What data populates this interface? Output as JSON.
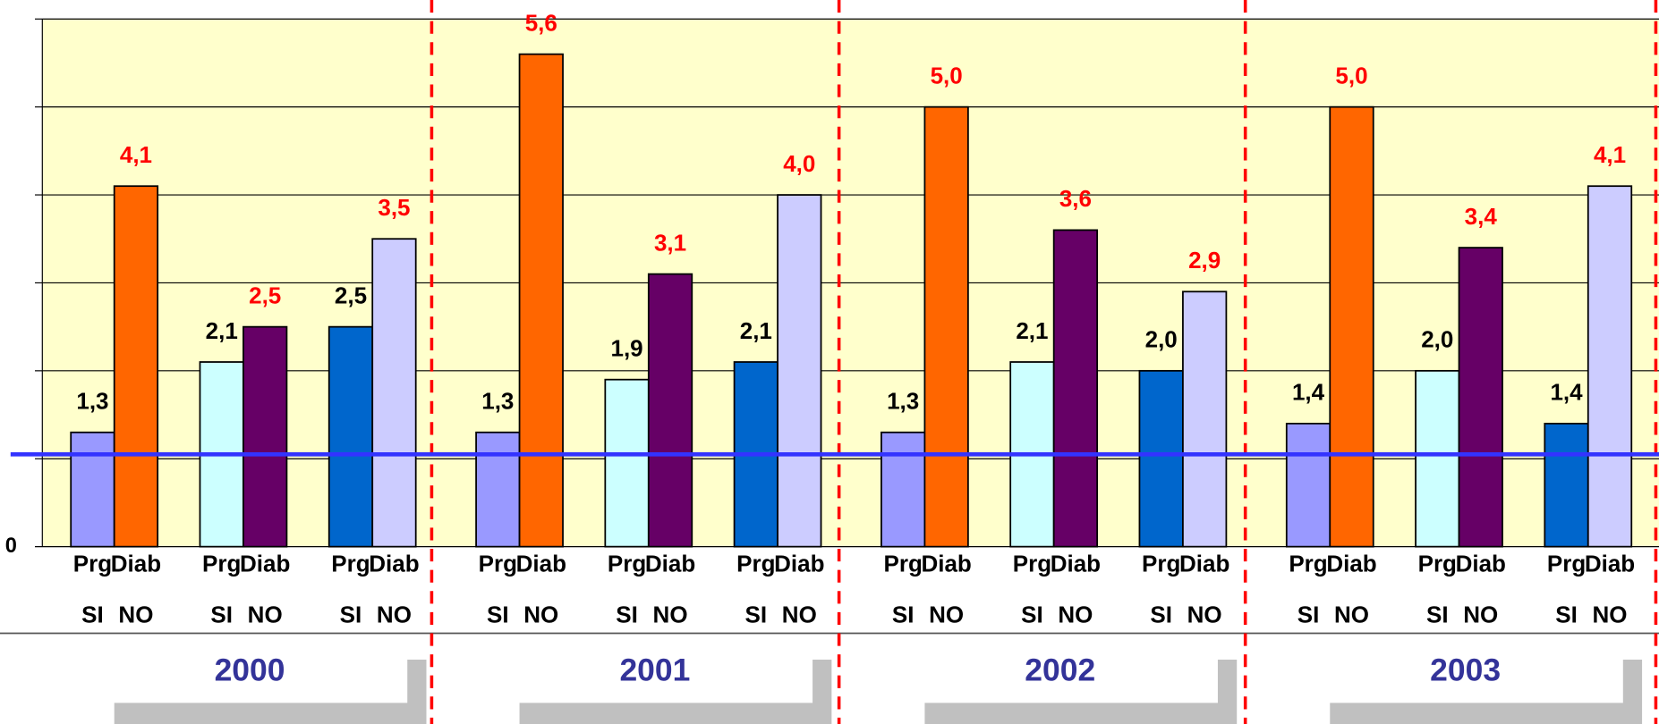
{
  "chart_data": {
    "type": "grouped_bar",
    "ylim": [
      0,
      6
    ],
    "yticks": [
      0
    ],
    "gridlines": [
      1,
      2,
      3,
      4,
      5,
      6
    ],
    "reference_line": 1.05,
    "reference_color": "#3333ff",
    "background": "#ffffcc",
    "bar_colors": [
      "#9999ff",
      "#ff6600",
      "#ccffff",
      "#660066",
      "#0066cc",
      "#ccccff"
    ],
    "value_label_colors": [
      "#000000",
      "#ff0000"
    ],
    "year_color": "#333399",
    "groups": [
      {
        "name": "2000",
        "pairs": [
          {
            "labels": [
              "Prg",
              "Diab"
            ],
            "sublabels": [
              "SI",
              "NO"
            ],
            "values": [
              1.3,
              4.1
            ],
            "value_labels": [
              "1,3",
              "4,1"
            ]
          },
          {
            "labels": [
              "Prg",
              "Diab"
            ],
            "sublabels": [
              "SI",
              "NO"
            ],
            "values": [
              2.1,
              2.5
            ],
            "value_labels": [
              "2,1",
              "2,5"
            ]
          },
          {
            "labels": [
              "Prg",
              "Diab"
            ],
            "sublabels": [
              "SI",
              "NO"
            ],
            "values": [
              2.5,
              3.5
            ],
            "value_labels": [
              "2,5",
              "3,5"
            ]
          }
        ]
      },
      {
        "name": "2001",
        "pairs": [
          {
            "labels": [
              "Prg",
              "Diab"
            ],
            "sublabels": [
              "SI",
              "NO"
            ],
            "values": [
              1.3,
              5.6
            ],
            "value_labels": [
              "1,3",
              "5,6"
            ]
          },
          {
            "labels": [
              "Prg",
              "Diab"
            ],
            "sublabels": [
              "SI",
              "NO"
            ],
            "values": [
              1.9,
              3.1
            ],
            "value_labels": [
              "1,9",
              "3,1"
            ]
          },
          {
            "labels": [
              "Prg",
              "Diab"
            ],
            "sublabels": [
              "SI",
              "NO"
            ],
            "values": [
              2.1,
              4.0
            ],
            "value_labels": [
              "2,1",
              "4,0"
            ]
          }
        ]
      },
      {
        "name": "2002",
        "pairs": [
          {
            "labels": [
              "Prg",
              "Diab"
            ],
            "sublabels": [
              "SI",
              "NO"
            ],
            "values": [
              1.3,
              5.0
            ],
            "value_labels": [
              "1,3",
              "5,0"
            ]
          },
          {
            "labels": [
              "Prg",
              "Diab"
            ],
            "sublabels": [
              "SI",
              "NO"
            ],
            "values": [
              2.1,
              3.6
            ],
            "value_labels": [
              "2,1",
              "3,6"
            ]
          },
          {
            "labels": [
              "Prg",
              "Diab"
            ],
            "sublabels": [
              "SI",
              "NO"
            ],
            "values": [
              2.0,
              2.9
            ],
            "value_labels": [
              "2,0",
              "2,9"
            ]
          }
        ]
      },
      {
        "name": "2003",
        "pairs": [
          {
            "labels": [
              "Prg",
              "Diab"
            ],
            "sublabels": [
              "SI",
              "NO"
            ],
            "values": [
              1.4,
              5.0
            ],
            "value_labels": [
              "1,4",
              "5,0"
            ]
          },
          {
            "labels": [
              "Prg",
              "Diab"
            ],
            "sublabels": [
              "SI",
              "NO"
            ],
            "values": [
              2.0,
              3.4
            ],
            "value_labels": [
              "2,0",
              "3,4"
            ]
          },
          {
            "labels": [
              "Prg",
              "Diab"
            ],
            "sublabels": [
              "SI",
              "NO"
            ],
            "values": [
              1.4,
              4.1
            ],
            "value_labels": [
              "1,4",
              "4,1"
            ]
          }
        ]
      }
    ]
  }
}
